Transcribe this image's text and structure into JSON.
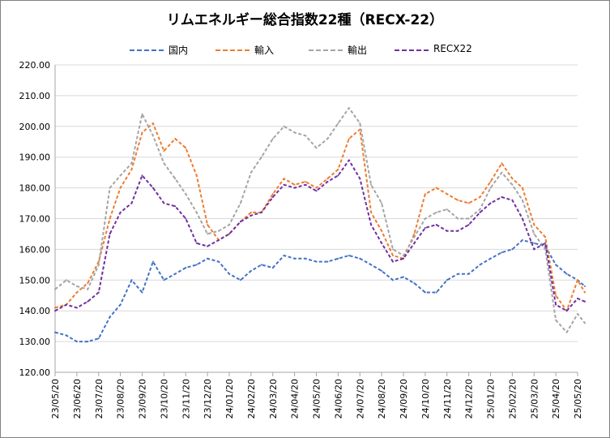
{
  "chart_data": {
    "type": "line",
    "title": "リムエネルギー総合指数22種（RECX-22）",
    "xlabel": "",
    "ylabel": "",
    "ylim": [
      120,
      220
    ],
    "yticks": [
      120,
      130,
      140,
      150,
      160,
      170,
      180,
      190,
      200,
      210,
      220
    ],
    "ytick_labels": [
      "120.00",
      "130.00",
      "140.00",
      "150.00",
      "160.00",
      "170.00",
      "180.00",
      "190.00",
      "200.00",
      "210.00",
      "220.00"
    ],
    "x_ticks": [
      "23/05/20",
      "23/06/20",
      "23/07/20",
      "23/08/20",
      "23/09/20",
      "23/10/20",
      "23/11/20",
      "23/12/20",
      "24/01/20",
      "24/02/20",
      "24/03/20",
      "24/04/20",
      "24/05/20",
      "24/06/20",
      "24/07/20",
      "24/08/20",
      "24/09/20",
      "24/10/20",
      "24/11/20",
      "24/12/20",
      "25/01/20",
      "25/02/20",
      "25/03/20",
      "25/04/20",
      "25/05/20"
    ],
    "grid": true,
    "legend_position": "top",
    "x": [
      "23/05/20",
      "23/06/05",
      "23/06/20",
      "23/07/05",
      "23/07/20",
      "23/08/05",
      "23/08/20",
      "23/09/05",
      "23/09/20",
      "23/10/05",
      "23/10/20",
      "23/11/05",
      "23/11/20",
      "23/12/05",
      "23/12/20",
      "24/01/05",
      "24/01/20",
      "24/02/05",
      "24/02/20",
      "24/03/05",
      "24/03/20",
      "24/04/05",
      "24/04/20",
      "24/05/05",
      "24/05/20",
      "24/06/05",
      "24/06/20",
      "24/07/05",
      "24/07/20",
      "24/08/05",
      "24/08/20",
      "24/09/05",
      "24/09/20",
      "24/10/05",
      "24/10/20",
      "24/11/05",
      "24/11/20",
      "24/12/05",
      "24/12/20",
      "25/01/05",
      "25/01/20",
      "25/02/05",
      "25/02/20",
      "25/03/05",
      "25/03/20",
      "25/04/05",
      "25/04/20",
      "25/05/05",
      "25/05/20",
      "25/05/30"
    ],
    "series": [
      {
        "name": "国内",
        "color": "#4472c4",
        "values": [
          133,
          132,
          130,
          130,
          131,
          138,
          142,
          150,
          146,
          156,
          150,
          152,
          154,
          155,
          157,
          156,
          152,
          150,
          153,
          155,
          154,
          158,
          157,
          157,
          156,
          156,
          157,
          158,
          157,
          155,
          153,
          150,
          151,
          149,
          146,
          146,
          150,
          152,
          152,
          155,
          157,
          159,
          160,
          163,
          162,
          161,
          155,
          152,
          150,
          148
        ]
      },
      {
        "name": "輸入",
        "color": "#ed7d31",
        "values": [
          141,
          142,
          146,
          149,
          156,
          170,
          180,
          186,
          198,
          201,
          192,
          196,
          193,
          184,
          168,
          163,
          165,
          169,
          172,
          172,
          178,
          183,
          181,
          182,
          180,
          183,
          186,
          196,
          199,
          172,
          166,
          158,
          157,
          165,
          178,
          180,
          178,
          176,
          175,
          177,
          182,
          188,
          183,
          180,
          168,
          164,
          145,
          140,
          150,
          146
        ]
      },
      {
        "name": "輸出",
        "color": "#a5a5a5",
        "values": [
          147,
          150,
          148,
          147,
          155,
          180,
          184,
          188,
          204,
          197,
          188,
          183,
          178,
          172,
          165,
          166,
          168,
          175,
          185,
          190,
          196,
          200,
          198,
          197,
          193,
          196,
          201,
          206,
          201,
          181,
          175,
          160,
          158,
          164,
          170,
          172,
          173,
          170,
          170,
          173,
          180,
          185,
          181,
          176,
          165,
          160,
          137,
          133,
          139,
          136
        ]
      },
      {
        "name": "RECX22",
        "color": "#7030a0",
        "values": [
          140,
          142,
          141,
          143,
          146,
          165,
          172,
          175,
          184,
          180,
          175,
          174,
          170,
          162,
          161,
          163,
          165,
          169,
          171,
          172,
          177,
          181,
          180,
          181,
          179,
          182,
          184,
          189,
          183,
          168,
          162,
          156,
          157,
          162,
          167,
          168,
          166,
          166,
          168,
          172,
          175,
          177,
          176,
          170,
          160,
          162,
          142,
          140,
          144,
          143
        ]
      }
    ]
  }
}
